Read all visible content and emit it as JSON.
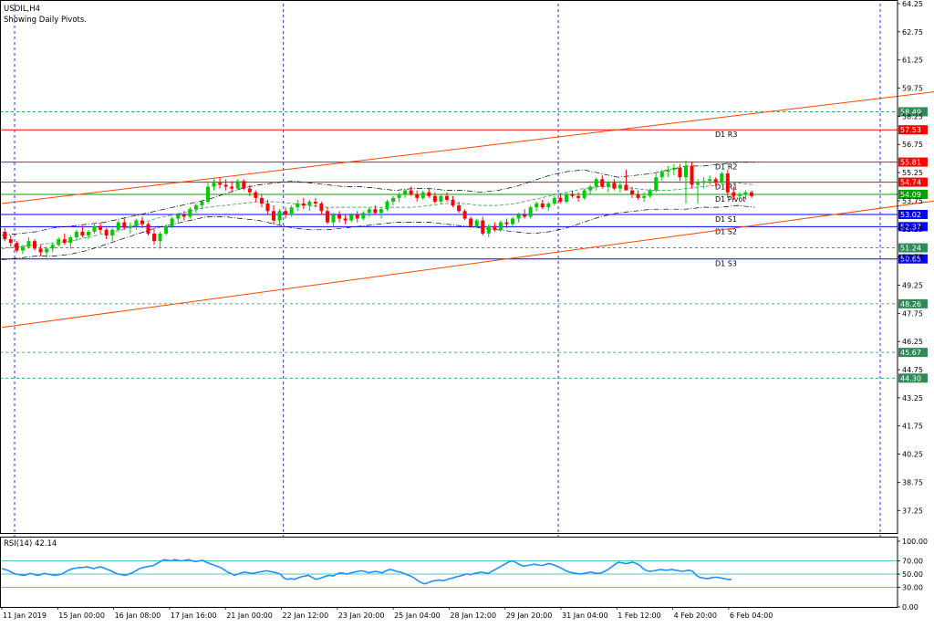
{
  "header": {
    "symbol": "USOIL,H4",
    "subtitle": "Showing Daily Pivots."
  },
  "chart_data": {
    "type": "candlestick",
    "title": "USOIL,H4",
    "subtitle": "Showing Daily Pivots.",
    "ylim": [
      36.0,
      64.25
    ],
    "y_ticks": [
      "64.25",
      "62.75",
      "61.25",
      "59.75",
      "58.25",
      "56.75",
      "55.25",
      "53.75",
      "52.25",
      "50.75",
      "49.25",
      "47.75",
      "46.25",
      "44.75",
      "43.25",
      "41.75",
      "40.25",
      "38.75",
      "37.25"
    ],
    "x_labels": [
      "11 Jan 2019",
      "15 Jan 00:00",
      "16 Jan 08:00",
      "17 Jan 16:00",
      "21 Jan 00:00",
      "22 Jan 12:00",
      "23 Jan 20:00",
      "25 Jan 04:00",
      "28 Jan 12:00",
      "29 Jan 20:00",
      "31 Jan 04:00",
      "1 Feb 12:00",
      "4 Feb 20:00",
      "6 Feb 04:00"
    ],
    "period_separators": [
      0,
      45,
      91,
      183,
      275
    ],
    "pivot_lines": [
      {
        "name": "D1 R3",
        "value": "57.53",
        "color": "#ff0000"
      },
      {
        "name": "D1 R2",
        "value": "55.81",
        "color": "#ff0000"
      },
      {
        "name": "D1 R1",
        "value": "54.74",
        "color": "#ff0000"
      },
      {
        "name": "D1 Pivot",
        "value": "54.09",
        "color": "#00a000"
      },
      {
        "name": "D1 S1",
        "value": "53.02",
        "color": "#0000ff"
      },
      {
        "name": "D1 S2",
        "value": "52.37",
        "color": "#0000ff"
      },
      {
        "name": "D1 S3",
        "value": "50.65",
        "color": "#0000ff"
      }
    ],
    "level_lines": [
      {
        "value": "58.49",
        "color": "#2e8b57"
      },
      {
        "value": "51.24",
        "color": "#2e8b57"
      },
      {
        "value": "48.26",
        "color": "#2e8b57"
      },
      {
        "value": "45.67",
        "color": "#2e8b57"
      },
      {
        "value": "44.30",
        "color": "#2e8b57"
      }
    ],
    "trend_lines": [
      {
        "from": [
          0,
          53.6
        ],
        "to": [
          340,
          60.4
        ],
        "color": "#ff4500"
      },
      {
        "from": [
          0,
          47.0
        ],
        "to": [
          340,
          54.7
        ],
        "color": "#ff4500"
      }
    ],
    "bands": {
      "start": 0,
      "upper": [
        51.9,
        52.0,
        52.1,
        52.3,
        52.4,
        52.5,
        52.6,
        52.8,
        53.0,
        53.2,
        53.4,
        53.6,
        53.8,
        54.1,
        54.4,
        54.6,
        54.7,
        54.8,
        54.7,
        54.6,
        54.5,
        54.5,
        54.4,
        54.3,
        54.4,
        54.4,
        54.3,
        54.3,
        54.2,
        54.3,
        54.5,
        54.8,
        55.1,
        55.3,
        55.4,
        55.2,
        55.0,
        55.1,
        55.2,
        55.4,
        55.6,
        55.6,
        55.7,
        55.8,
        55.8
      ],
      "middle": [
        51.2,
        51.3,
        51.4,
        51.5,
        51.6,
        51.8,
        52.0,
        52.2,
        52.5,
        52.8,
        53.0,
        53.2,
        53.4,
        53.5,
        53.6,
        53.7,
        53.7,
        53.6,
        53.5,
        53.4,
        53.4,
        53.4,
        53.4,
        53.4,
        53.4,
        53.5,
        53.6,
        53.6,
        53.5,
        53.5,
        53.6,
        53.8,
        54.0,
        54.2,
        54.4,
        54.5,
        54.5,
        54.4,
        54.3,
        54.3,
        54.4,
        54.5,
        54.6,
        54.7,
        54.6
      ],
      "lower": [
        50.6,
        50.7,
        50.8,
        50.8,
        50.9,
        51.1,
        51.4,
        51.7,
        52.0,
        52.3,
        52.5,
        52.7,
        52.9,
        52.9,
        52.8,
        52.7,
        52.5,
        52.3,
        52.2,
        52.2,
        52.3,
        52.4,
        52.5,
        52.6,
        52.6,
        52.6,
        52.5,
        52.4,
        52.3,
        52.2,
        52.1,
        52.0,
        52.1,
        52.3,
        52.6,
        52.9,
        53.1,
        53.2,
        53.3,
        53.3,
        53.3,
        53.4,
        53.4,
        53.5,
        53.4
      ]
    },
    "candles": [
      [
        52.1,
        52.3,
        51.6,
        51.7
      ],
      [
        51.7,
        51.9,
        51.3,
        51.5
      ],
      [
        51.5,
        51.6,
        51.0,
        51.1
      ],
      [
        51.1,
        51.4,
        50.9,
        51.3
      ],
      [
        51.3,
        51.8,
        51.2,
        51.6
      ],
      [
        51.6,
        51.7,
        51.1,
        51.2
      ],
      [
        51.2,
        51.4,
        50.8,
        51.0
      ],
      [
        51.0,
        51.3,
        50.7,
        51.2
      ],
      [
        51.2,
        51.5,
        51.0,
        51.4
      ],
      [
        51.4,
        51.8,
        51.3,
        51.7
      ],
      [
        51.7,
        52.0,
        51.4,
        51.5
      ],
      [
        51.5,
        51.9,
        51.2,
        51.8
      ],
      [
        51.8,
        52.2,
        51.6,
        52.1
      ],
      [
        52.1,
        52.4,
        51.8,
        51.9
      ],
      [
        51.9,
        52.2,
        51.7,
        52.1
      ],
      [
        52.1,
        52.5,
        52.0,
        52.4
      ],
      [
        52.4,
        52.6,
        52.0,
        52.2
      ],
      [
        52.2,
        52.3,
        51.7,
        51.9
      ],
      [
        51.9,
        52.3,
        51.6,
        52.2
      ],
      [
        52.2,
        52.7,
        52.1,
        52.6
      ],
      [
        52.6,
        52.8,
        52.2,
        52.3
      ],
      [
        52.3,
        52.6,
        52.0,
        52.4
      ],
      [
        52.4,
        52.8,
        52.2,
        52.7
      ],
      [
        52.7,
        52.9,
        52.3,
        52.5
      ],
      [
        52.5,
        52.6,
        51.9,
        52.0
      ],
      [
        52.0,
        52.3,
        51.4,
        51.6
      ],
      [
        51.6,
        52.1,
        51.2,
        52.0
      ],
      [
        52.0,
        52.5,
        51.9,
        52.4
      ],
      [
        52.4,
        52.9,
        52.3,
        52.8
      ],
      [
        52.8,
        53.1,
        52.6,
        53.0
      ],
      [
        53.0,
        53.2,
        52.7,
        52.9
      ],
      [
        52.9,
        53.4,
        52.8,
        53.3
      ],
      [
        53.3,
        53.6,
        53.1,
        53.5
      ],
      [
        53.5,
        53.8,
        53.3,
        53.7
      ],
      [
        53.7,
        54.7,
        53.6,
        54.5
      ],
      [
        54.5,
        54.9,
        54.3,
        54.7
      ],
      [
        54.7,
        55.0,
        54.4,
        54.6
      ],
      [
        54.6,
        54.9,
        54.3,
        54.5
      ],
      [
        54.5,
        54.8,
        54.2,
        54.4
      ],
      [
        54.4,
        54.9,
        54.3,
        54.8
      ],
      [
        54.8,
        54.9,
        54.3,
        54.4
      ],
      [
        54.4,
        54.6,
        54.0,
        54.2
      ],
      [
        54.2,
        54.3,
        53.7,
        53.9
      ],
      [
        53.9,
        54.1,
        53.4,
        53.6
      ],
      [
        53.6,
        53.8,
        53.0,
        53.2
      ],
      [
        53.2,
        53.5,
        52.5,
        52.7
      ],
      [
        52.7,
        53.3,
        52.5,
        53.2
      ],
      [
        53.2,
        53.4,
        52.8,
        53.0
      ],
      [
        53.0,
        53.5,
        52.9,
        53.4
      ],
      [
        53.4,
        53.8,
        53.2,
        53.6
      ],
      [
        53.6,
        53.9,
        53.3,
        53.5
      ],
      [
        53.5,
        53.8,
        53.2,
        53.7
      ],
      [
        53.7,
        53.9,
        53.4,
        53.6
      ],
      [
        53.6,
        53.7,
        53.0,
        53.2
      ],
      [
        53.2,
        53.4,
        52.5,
        52.6
      ],
      [
        52.6,
        53.1,
        52.4,
        53.0
      ],
      [
        53.0,
        53.2,
        52.6,
        52.8
      ],
      [
        52.8,
        53.0,
        52.5,
        52.7
      ],
      [
        52.7,
        53.1,
        52.6,
        53.0
      ],
      [
        53.0,
        53.2,
        52.6,
        52.8
      ],
      [
        52.8,
        53.2,
        52.7,
        53.1
      ],
      [
        53.1,
        53.4,
        52.9,
        53.3
      ],
      [
        53.3,
        53.5,
        53.0,
        53.1
      ],
      [
        53.1,
        53.4,
        52.8,
        53.3
      ],
      [
        53.3,
        53.8,
        53.2,
        53.7
      ],
      [
        53.7,
        54.0,
        53.5,
        53.9
      ],
      [
        53.9,
        54.2,
        53.7,
        54.1
      ],
      [
        54.1,
        54.4,
        53.9,
        54.3
      ],
      [
        54.3,
        54.5,
        54.0,
        54.1
      ],
      [
        54.1,
        54.3,
        53.7,
        53.9
      ],
      [
        53.9,
        54.3,
        53.8,
        54.2
      ],
      [
        54.2,
        54.4,
        53.9,
        54.0
      ],
      [
        54.0,
        54.2,
        53.6,
        53.7
      ],
      [
        53.7,
        54.1,
        53.6,
        54.0
      ],
      [
        54.0,
        54.2,
        53.7,
        53.8
      ],
      [
        53.8,
        54.0,
        53.4,
        53.5
      ],
      [
        53.5,
        53.7,
        53.1,
        53.2
      ],
      [
        53.2,
        53.3,
        52.7,
        52.8
      ],
      [
        52.8,
        52.9,
        52.3,
        52.4
      ],
      [
        52.4,
        52.8,
        52.3,
        52.7
      ],
      [
        52.7,
        52.9,
        51.9,
        52.0
      ],
      [
        52.0,
        52.5,
        51.8,
        52.4
      ],
      [
        52.4,
        52.6,
        52.1,
        52.2
      ],
      [
        52.2,
        52.7,
        52.1,
        52.6
      ],
      [
        52.6,
        52.8,
        52.3,
        52.5
      ],
      [
        52.5,
        52.9,
        52.4,
        52.8
      ],
      [
        52.8,
        53.1,
        52.6,
        53.0
      ],
      [
        53.0,
        53.3,
        52.8,
        52.9
      ],
      [
        52.9,
        53.5,
        52.8,
        53.4
      ],
      [
        53.4,
        53.7,
        53.2,
        53.6
      ],
      [
        53.6,
        53.8,
        53.3,
        53.4
      ],
      [
        53.4,
        53.7,
        53.2,
        53.6
      ],
      [
        53.6,
        54.0,
        53.5,
        53.9
      ],
      [
        53.9,
        54.1,
        53.6,
        53.7
      ],
      [
        53.7,
        54.2,
        53.6,
        54.1
      ],
      [
        54.1,
        54.3,
        53.9,
        54.0
      ],
      [
        54.0,
        54.2,
        53.7,
        53.9
      ],
      [
        53.9,
        54.4,
        53.8,
        54.3
      ],
      [
        54.3,
        54.6,
        54.1,
        54.5
      ],
      [
        54.5,
        55.0,
        54.3,
        54.9
      ],
      [
        54.9,
        55.1,
        54.4,
        54.5
      ],
      [
        54.5,
        54.8,
        54.2,
        54.7
      ],
      [
        54.7,
        54.9,
        54.3,
        54.4
      ],
      [
        54.4,
        54.8,
        54.2,
        54.6
      ],
      [
        54.6,
        55.4,
        54.5,
        54.3
      ],
      [
        54.3,
        54.5,
        53.9,
        54.1
      ],
      [
        54.1,
        54.3,
        53.8,
        53.9
      ],
      [
        53.9,
        54.2,
        53.7,
        54.0
      ],
      [
        54.0,
        54.4,
        53.9,
        54.3
      ],
      [
        54.3,
        55.2,
        54.2,
        55.0
      ],
      [
        55.0,
        55.4,
        54.8,
        55.3
      ],
      [
        55.3,
        55.6,
        55.0,
        55.4
      ],
      [
        55.4,
        55.7,
        55.1,
        55.5
      ],
      [
        55.5,
        55.7,
        54.8,
        55.0
      ],
      [
        55.0,
        55.9,
        53.6,
        55.6
      ],
      [
        55.6,
        55.8,
        54.4,
        54.6
      ],
      [
        54.6,
        54.9,
        53.6,
        54.7
      ],
      [
        54.7,
        55.0,
        54.4,
        54.8
      ],
      [
        54.8,
        55.1,
        54.6,
        54.9
      ],
      [
        54.9,
        55.0,
        54.5,
        54.7
      ],
      [
        54.7,
        55.3,
        54.6,
        55.2
      ],
      [
        55.2,
        55.4,
        53.9,
        54.2
      ],
      [
        54.2,
        54.5,
        53.8,
        54.0
      ],
      [
        54.0,
        54.2,
        53.9,
        54.1
      ],
      [
        54.1,
        54.3,
        53.8,
        54.2
      ],
      [
        54.2,
        54.3,
        53.9,
        54.0
      ]
    ],
    "candle_colors": {
      "up": "#00cc00",
      "down": "#ff0000"
    },
    "rsi": {
      "label": "RSI(14) 42.14",
      "ylim": [
        0,
        100
      ],
      "y_ticks": [
        "100.00",
        "70.00",
        "50.00",
        "30.00",
        "0.00"
      ],
      "levels": [
        70,
        50,
        30
      ],
      "color": "#1e90ff",
      "values": [
        58,
        57,
        55,
        52,
        50,
        49,
        48,
        49,
        51,
        50,
        48,
        49,
        51,
        50,
        49,
        48,
        49,
        50,
        53,
        56,
        58,
        59,
        60,
        60,
        61,
        60,
        58,
        60,
        61,
        59,
        57,
        55,
        52,
        50,
        49,
        48,
        50,
        52,
        55,
        58,
        60,
        61,
        62,
        63,
        66,
        69,
        72,
        71,
        70,
        72,
        71,
        70,
        71,
        72,
        70,
        69,
        70,
        71,
        68,
        66,
        64,
        62,
        60,
        57,
        53,
        51,
        48,
        50,
        52,
        53,
        52,
        51,
        52,
        53,
        54,
        55,
        54,
        53,
        52,
        50,
        44,
        42,
        43,
        42,
        44,
        46,
        47,
        48,
        45,
        42,
        43,
        45,
        47,
        48,
        47,
        50,
        52,
        51,
        50,
        52,
        53,
        54,
        55,
        54,
        52,
        53,
        54,
        53,
        52,
        55,
        57,
        56,
        54,
        53,
        51,
        49,
        47,
        44,
        40,
        37,
        35,
        37,
        39,
        40,
        41,
        40,
        41,
        43,
        44,
        46,
        47,
        49,
        50,
        49,
        51,
        52,
        53,
        52,
        51,
        54,
        57,
        60,
        63,
        66,
        69,
        70,
        67,
        64,
        62,
        63,
        64,
        65,
        64,
        63,
        64,
        66,
        65,
        63,
        61,
        58,
        55,
        53,
        52,
        51,
        50,
        51,
        52,
        53,
        52,
        51,
        52,
        54,
        57,
        61,
        65,
        68,
        67,
        66,
        67,
        68,
        66,
        63,
        58,
        55,
        54,
        55,
        56,
        57,
        56,
        56,
        57,
        56,
        55,
        54,
        55,
        56,
        54,
        48,
        45,
        44,
        43,
        44,
        45,
        45,
        44,
        43,
        42,
        42
      ]
    }
  }
}
